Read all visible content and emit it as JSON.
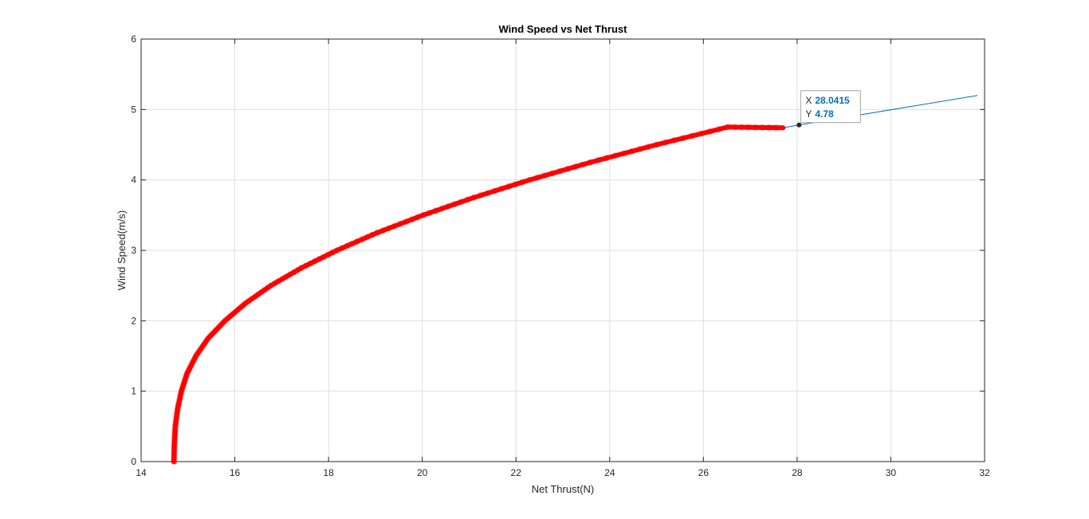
{
  "chart_data": {
    "type": "line",
    "title": "Wind Speed vs Net Thrust",
    "xlabel": "Net Thrust(N)",
    "ylabel": "Wind Speed(m/s)",
    "xlim": [
      14,
      32
    ],
    "ylim": [
      0,
      6
    ],
    "xticks": [
      14,
      16,
      18,
      20,
      22,
      24,
      26,
      28,
      30,
      32
    ],
    "yticks": [
      0,
      1,
      2,
      3,
      4,
      5,
      6
    ],
    "grid": true,
    "series": [
      {
        "color": "#ff0000",
        "style": "thick-markers",
        "x": [
          14.7,
          14.71,
          14.73,
          14.78,
          14.86,
          14.98,
          15.17,
          15.43,
          15.79,
          16.23,
          16.77,
          17.42,
          18.18,
          19.04,
          20.02,
          21.1,
          22.29,
          23.59,
          25.0,
          26.52,
          27.7
        ],
        "y": [
          0.0,
          0.25,
          0.5,
          0.75,
          1.0,
          1.25,
          1.5,
          1.75,
          2.0,
          2.25,
          2.5,
          2.75,
          3.0,
          3.25,
          3.5,
          3.75,
          4.0,
          4.25,
          4.5,
          4.75,
          4.74
        ]
      },
      {
        "color": "#0072bd",
        "style": "thin-line",
        "x": [
          27.7,
          28.04,
          31.85
        ],
        "y": [
          4.74,
          4.78,
          5.2
        ]
      }
    ],
    "datatip": {
      "x_key": "X",
      "x_value": "28.0415",
      "y_key": "Y",
      "y_value": "4.78",
      "point": [
        28.0415,
        4.78
      ],
      "value_color": "#0072bd"
    }
  }
}
